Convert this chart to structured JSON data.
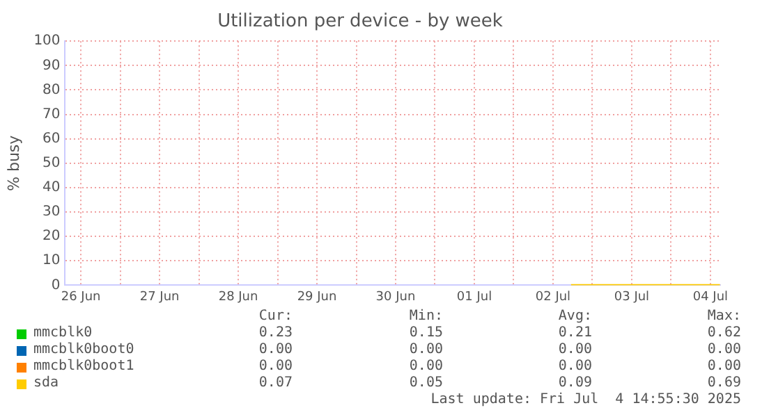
{
  "chart_data": {
    "type": "line",
    "title": "Utilization per device - by week",
    "ylabel": "% busy",
    "x": [
      "2025-07-02T17:30",
      "2025-07-03T00:00",
      "2025-07-03T12:00",
      "2025-07-04T00:00",
      "2025-07-04T14:55"
    ],
    "series": [
      {
        "name": "mmcblk0",
        "color": "#00cc00",
        "values": [
          null,
          null,
          null,
          null,
          null
        ]
      },
      {
        "name": "mmcblk0boot0",
        "color": "#0066b3",
        "values": [
          null,
          null,
          null,
          null,
          null
        ]
      },
      {
        "name": "mmcblk0boot1",
        "color": "#ff8000",
        "values": [
          null,
          null,
          null,
          null,
          null
        ]
      },
      {
        "name": "sda",
        "color": "#ffcc00",
        "values": [
          0.1,
          0.1,
          0.1,
          0.1,
          0.1
        ]
      }
    ],
    "xlim": [
      "2025-06-26T07:00",
      "2025-07-04T15:00"
    ],
    "xticks": [
      {
        "value": "2025-06-26T12:00",
        "label": "26 Jun"
      },
      {
        "value": "2025-06-27T00:00",
        "label": null
      },
      {
        "value": "2025-06-27T12:00",
        "label": "27 Jun"
      },
      {
        "value": "2025-06-28T00:00",
        "label": null
      },
      {
        "value": "2025-06-28T12:00",
        "label": "28 Jun"
      },
      {
        "value": "2025-06-29T00:00",
        "label": null
      },
      {
        "value": "2025-06-29T12:00",
        "label": "29 Jun"
      },
      {
        "value": "2025-06-30T00:00",
        "label": null
      },
      {
        "value": "2025-06-30T12:00",
        "label": "30 Jun"
      },
      {
        "value": "2025-07-01T00:00",
        "label": null
      },
      {
        "value": "2025-07-01T12:00",
        "label": "01 Jul"
      },
      {
        "value": "2025-07-02T00:00",
        "label": null
      },
      {
        "value": "2025-07-02T12:00",
        "label": "02 Jul"
      },
      {
        "value": "2025-07-03T00:00",
        "label": null
      },
      {
        "value": "2025-07-03T12:00",
        "label": "03 Jul"
      },
      {
        "value": "2025-07-04T00:00",
        "label": null
      },
      {
        "value": "2025-07-04T12:00",
        "label": "04 Jul"
      }
    ],
    "ylim": [
      0,
      100
    ],
    "yticks": [
      0,
      10,
      20,
      30,
      40,
      50,
      60,
      70,
      80,
      90,
      100
    ],
    "grid": true,
    "legend": "bottom",
    "marker": "none",
    "line_style": "solid",
    "annotations": [
      "Cur:",
      "Min:",
      "Avg:",
      "Max:",
      "0.23",
      "0.15",
      "0.21",
      "0.62",
      "0.00",
      "0.00",
      "0.00",
      "0.00",
      "0.00",
      "0.00",
      "0.00",
      "0.00",
      "0.07",
      "0.05",
      "0.09",
      "0.69",
      "Last update: Fri Jul  4 14:55:30 2025"
    ]
  }
}
